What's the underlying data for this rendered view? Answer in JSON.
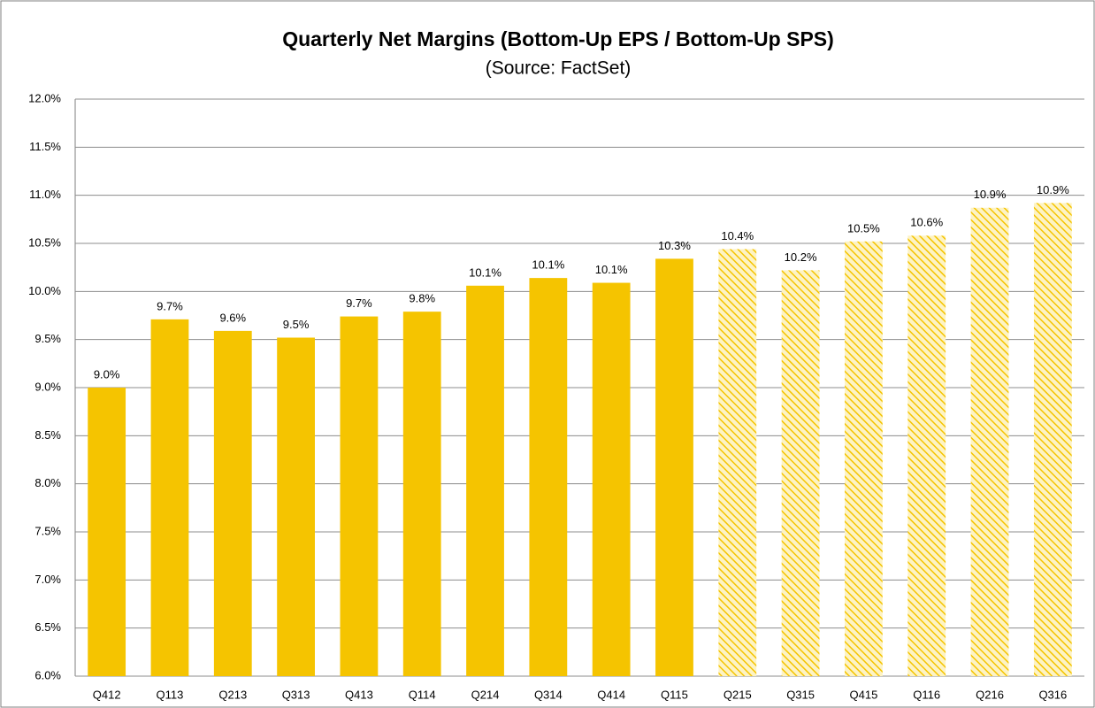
{
  "chart_data": {
    "type": "bar",
    "title": "Quarterly Net Margins (Bottom-Up EPS / Bottom-Up SPS)",
    "subtitle": "(Source: FactSet)",
    "categories": [
      "Q412",
      "Q113",
      "Q213",
      "Q313",
      "Q413",
      "Q114",
      "Q214",
      "Q314",
      "Q414",
      "Q115",
      "Q215",
      "Q315",
      "Q415",
      "Q116",
      "Q216",
      "Q316"
    ],
    "values": [
      9.0,
      9.71,
      9.59,
      9.52,
      9.74,
      9.79,
      10.06,
      10.14,
      10.09,
      10.34,
      10.44,
      10.22,
      10.52,
      10.58,
      10.87,
      10.92
    ],
    "value_labels": [
      "9.0%",
      "9.7%",
      "9.6%",
      "9.5%",
      "9.7%",
      "9.8%",
      "10.1%",
      "10.1%",
      "10.1%",
      "10.3%",
      "10.4%",
      "10.2%",
      "10.5%",
      "10.6%",
      "10.9%",
      "10.9%"
    ],
    "bar_styles": [
      "solid",
      "solid",
      "solid",
      "solid",
      "solid",
      "solid",
      "solid",
      "solid",
      "solid",
      "solid",
      "hatched",
      "hatched",
      "hatched",
      "hatched",
      "hatched",
      "hatched"
    ],
    "color": "#f5c400",
    "ylim": [
      6.0,
      12.0
    ],
    "yticks": [
      {
        "value": 6.0,
        "label": "6.0%"
      },
      {
        "value": 6.5,
        "label": "6.5%"
      },
      {
        "value": 7.0,
        "label": "7.0%"
      },
      {
        "value": 7.5,
        "label": "7.5%"
      },
      {
        "value": 8.0,
        "label": "8.0%"
      },
      {
        "value": 8.5,
        "label": "8.5%"
      },
      {
        "value": 9.0,
        "label": "9.0%"
      },
      {
        "value": 9.5,
        "label": "9.5%"
      },
      {
        "value": 10.0,
        "label": "10.0%"
      },
      {
        "value": 10.5,
        "label": "10.5%"
      },
      {
        "value": 11.0,
        "label": "11.0%"
      },
      {
        "value": 11.5,
        "label": "11.5%"
      },
      {
        "value": 12.0,
        "label": "12.0%"
      }
    ],
    "grid": true
  }
}
